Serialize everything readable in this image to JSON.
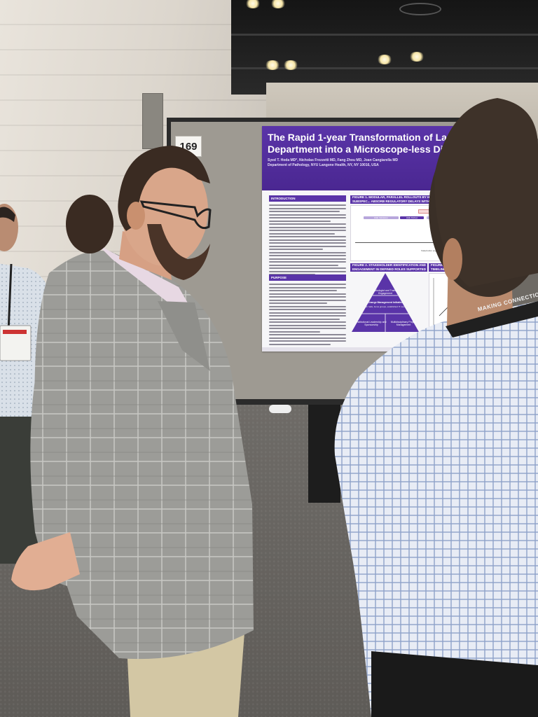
{
  "board": {
    "number": "169"
  },
  "poster": {
    "title_line_1": "The Rapid 1-year Transformation of Large Aca",
    "title_line_2": "Department into a Microscope-less Digital W",
    "authors": "Syed T. Hoda MD*, Nicholas Frezzetti MD, Fang Zhou MD, Joan Cangiarella MD",
    "department": "Department of Pathology, NYU Langone Health, NY, NY 10016, USA",
    "sections": {
      "introduction": "INTRODUCTION",
      "purpose": "PURPOSE",
      "figure_1": "FIGURE 1. MODULAR, PARALLEL ROLLOUTS BY H&E AND IHC, BY SUBSPEC... ABSORB REGULATORY DELAYS WITHOUT COMPROMISING TIMELINE",
      "figure_2": "FIGURE 2. STAKEHOLDER IDENTIFICATION AND ENGAGEMENT IN DEFINED ROLES SUPPORTED FLUID AND RAPID TRANSITION",
      "figure_3": "FIGURE 3. ST... TIMELINE EN..."
    },
    "figure_1_labels": {
      "regulatory_delay": "Regulatory Delay",
      "he_validation": "H&E Validation",
      "he_rollout": "H&E Rollout",
      "ihc_validation": "IHC Validation",
      "legend": "Stakeholder engaged; IHC rollout"
    },
    "pyramid_labels": {
      "top": "Pathologist and Trainee Engagement",
      "middle": "Change Management Initiative",
      "middle_sub": "(town halls, focus groups, established IT modes)",
      "bottom_left": "Institutional Leadership and Sponsorship",
      "bottom_right": "Multidisciplinary Project Management"
    }
  },
  "badges": {
    "lanyard_text": "MAKING CONNECTIONS"
  },
  "colors": {
    "poster_purple": "#5a34a8",
    "board_gray": "#9e9a92",
    "blazer_gray": "#9a9a96",
    "shirt_checks": "#c9d4e8"
  }
}
